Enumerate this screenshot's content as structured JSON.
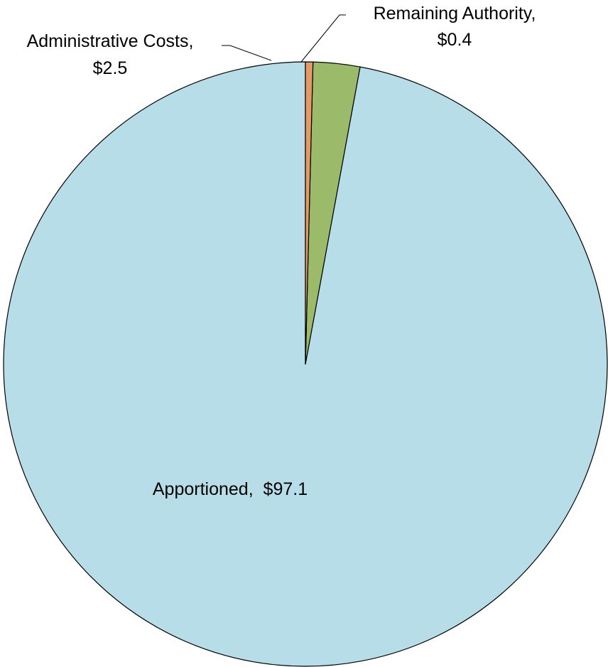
{
  "chart_data": {
    "type": "pie",
    "title": "",
    "slices": [
      {
        "label": "Apportioned",
        "value": 97.1,
        "value_label": "$97.1",
        "color": "#b7dde8"
      },
      {
        "label": "Administrative Costs",
        "value": 2.5,
        "value_label": "$2.5",
        "color": "#9bbb6a"
      },
      {
        "label": "Remaining Authority",
        "value": 0.4,
        "value_label": "$0.4",
        "color": "#e39a64"
      }
    ],
    "labels": {
      "apportioned": "Apportioned,  $97.1",
      "admin_line1": "Administrative Costs,",
      "admin_line2": "$2.5",
      "remaining_line1": "Remaining Authority,",
      "remaining_line2": "$0.4"
    },
    "legend": "none",
    "start_angle": "12 o'clock",
    "direction": "counterclockwise"
  }
}
